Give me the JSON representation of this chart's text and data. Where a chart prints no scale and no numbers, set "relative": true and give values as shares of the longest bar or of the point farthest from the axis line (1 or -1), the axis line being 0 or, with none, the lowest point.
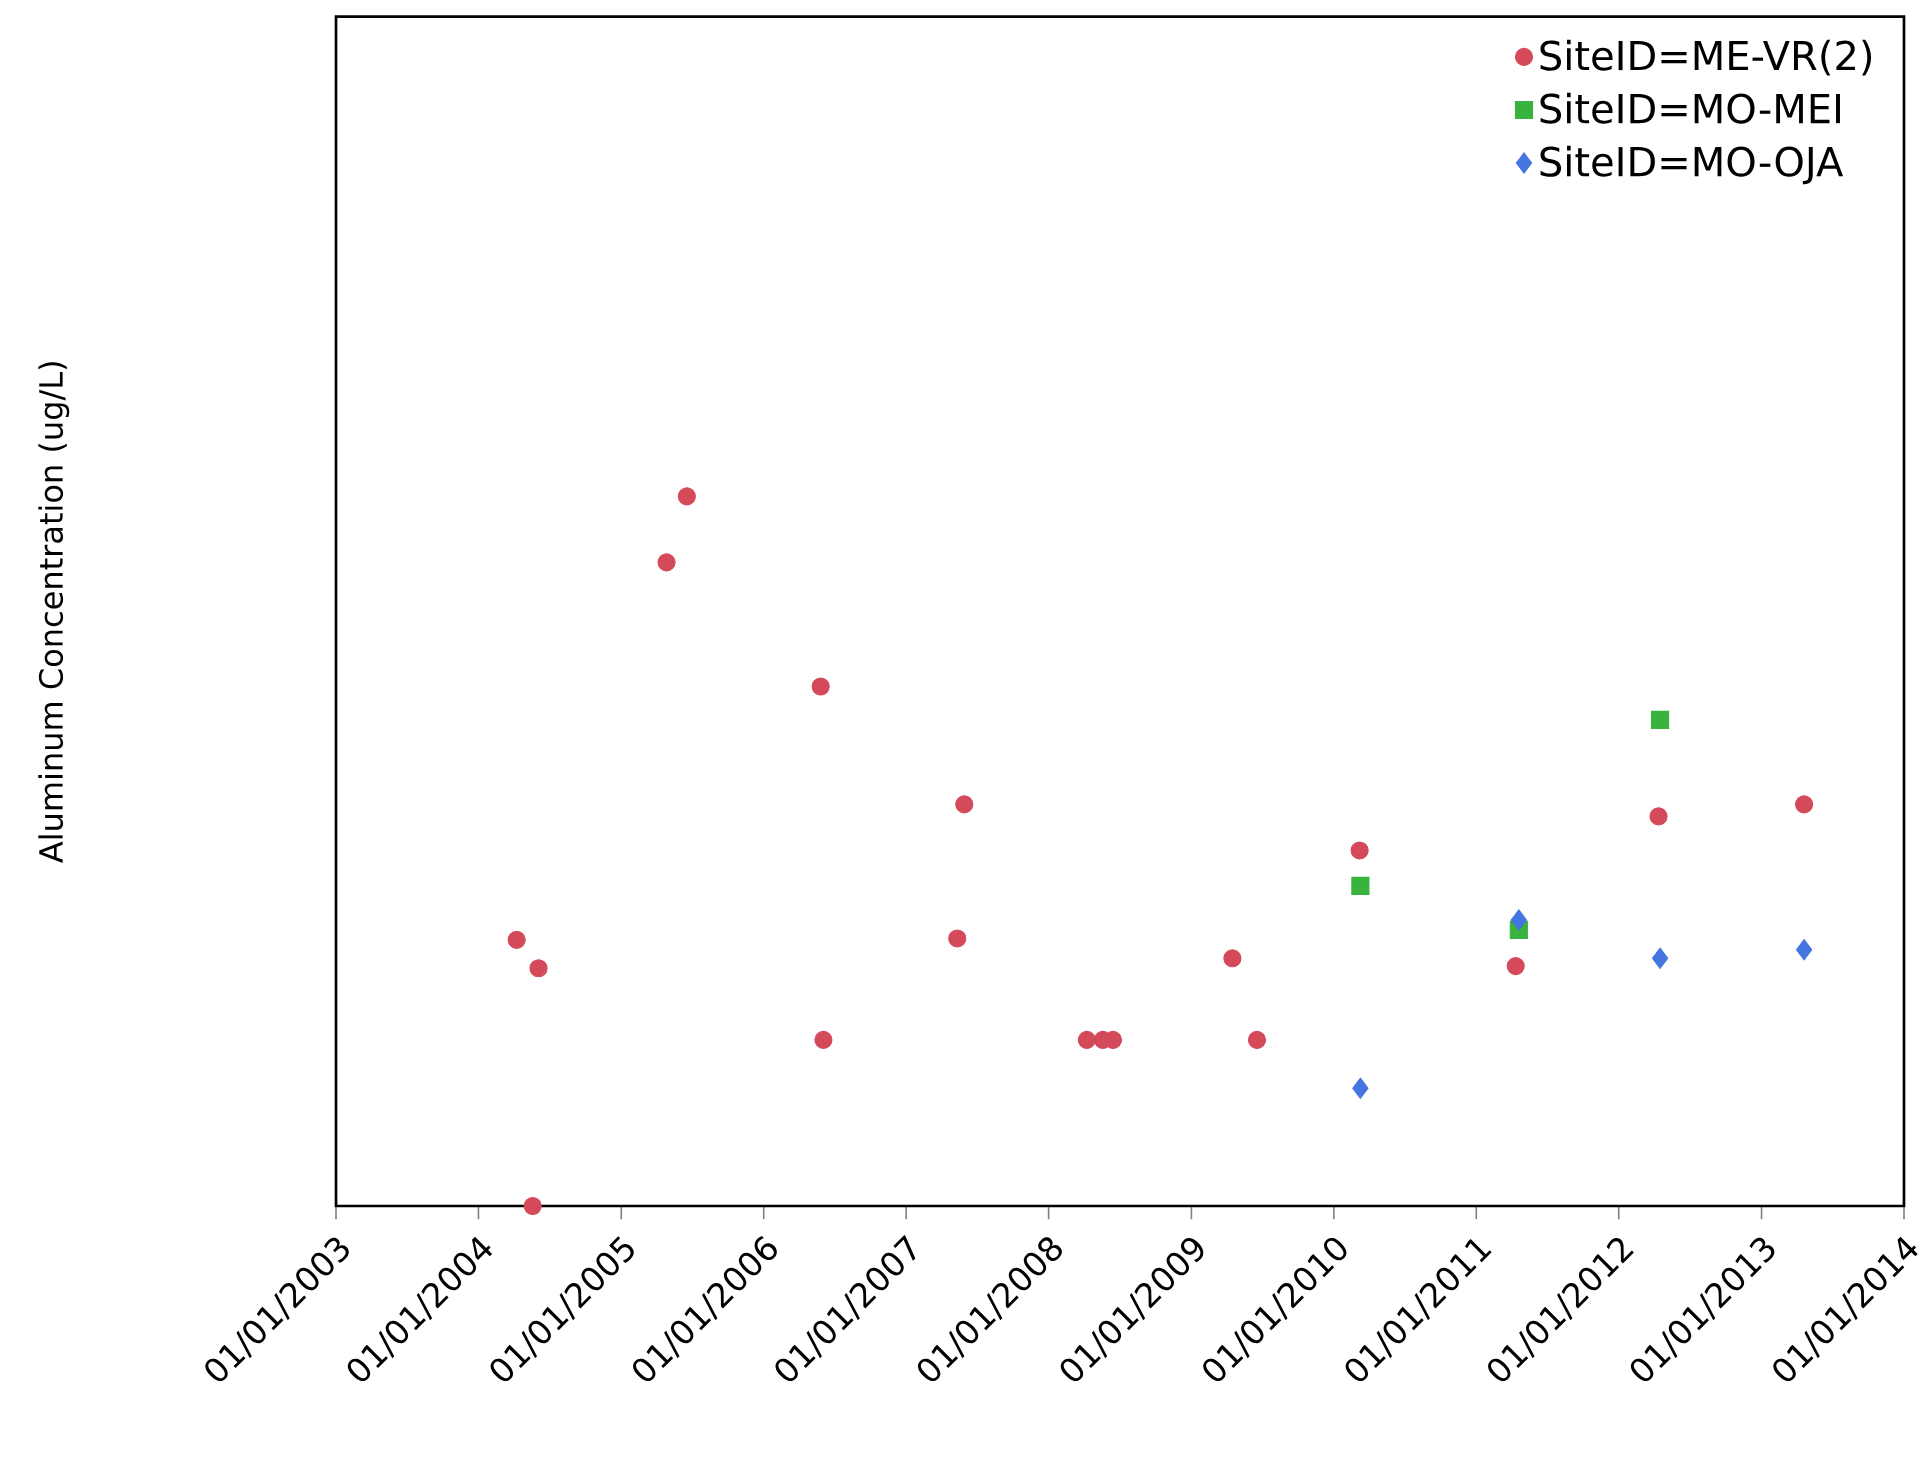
{
  "chart_data": {
    "type": "scatter",
    "ylabel": "Aluminum Concentration (ug/L)",
    "relative": true,
    "xlim": [
      "2003-01-01",
      "2014-01-01"
    ],
    "xticks": [
      {
        "value": "2003-01-01",
        "label": "01/01/2003"
      },
      {
        "value": "2004-01-01",
        "label": "01/01/2004"
      },
      {
        "value": "2005-01-01",
        "label": "01/01/2005"
      },
      {
        "value": "2006-01-01",
        "label": "01/01/2006"
      },
      {
        "value": "2007-01-01",
        "label": "01/01/2007"
      },
      {
        "value": "2008-01-01",
        "label": "01/01/2008"
      },
      {
        "value": "2009-01-01",
        "label": "01/01/2009"
      },
      {
        "value": "2010-01-01",
        "label": "01/01/2010"
      },
      {
        "value": "2011-01-01",
        "label": "01/01/2011"
      },
      {
        "value": "2012-01-01",
        "label": "01/01/2012"
      },
      {
        "value": "2013-01-01",
        "label": "01/01/2013"
      },
      {
        "value": "2014-01-01",
        "label": "01/01/2014"
      }
    ],
    "legend": "top right",
    "series": [
      {
        "name": "SiteID=ME-VR(2)",
        "color": "#d44a5a",
        "marker": "circle",
        "x": [
          "2004-04-08",
          "2004-06-03",
          "2004-05-19",
          "2005-04-27",
          "2005-06-18",
          "2006-05-27",
          "2006-06-03",
          "2007-05-12",
          "2007-05-30",
          "2008-04-08",
          "2008-05-19",
          "2008-06-14",
          "2009-04-16",
          "2009-06-18",
          "2010-03-08",
          "2011-04-12",
          "2012-04-12",
          "2013-04-20"
        ],
        "values": [
          0.375,
          0.335,
          0,
          0.907,
          1,
          0.732,
          0.234,
          0.377,
          0.566,
          0.234,
          0.234,
          0.234,
          0.349,
          0.234,
          0.501,
          0.338,
          0.549,
          0.566
        ]
      },
      {
        "name": "SiteID=MO-MEI",
        "color": "#37b33e",
        "marker": "square",
        "x": [
          "2010-03-10",
          "2011-04-20",
          "2012-04-16"
        ],
        "values": [
          0.451,
          0.389,
          0.685
        ]
      },
      {
        "name": "SiteID=MO-OJA",
        "color": "#4575e0",
        "marker": "diamond",
        "x": [
          "2010-03-10",
          "2011-04-20",
          "2012-04-16",
          "2013-04-20"
        ],
        "values": [
          0.166,
          0.403,
          0.349,
          0.361
        ]
      }
    ]
  }
}
